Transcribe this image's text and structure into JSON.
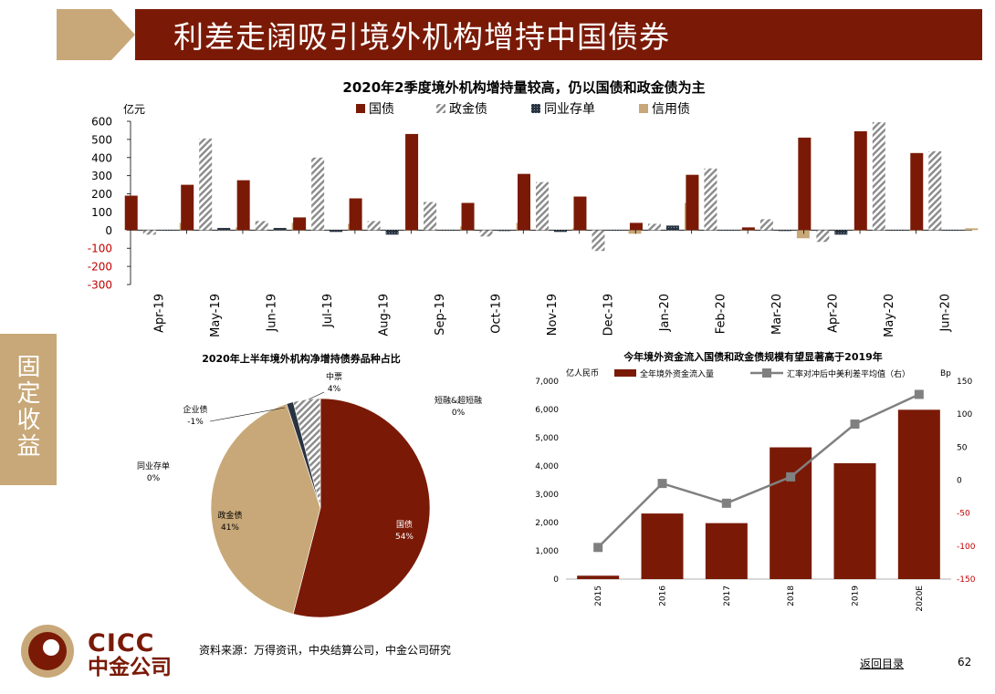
{
  "header": {
    "title": "利差走阔吸引境外机构增持中国债券"
  },
  "side_tab": {
    "label": "固定收益"
  },
  "footer": {
    "source": "资料来源：万得资讯，中央结算公司，中金公司研究",
    "back_link": "返回目录",
    "page_number": "62",
    "logo_en": "CICC",
    "logo_cn": "中金公司"
  },
  "colors": {
    "brown": "#7a1a06",
    "tan": "#c8a878",
    "navy": "#2a3340",
    "line_gray": "#808080"
  },
  "chart_data": [
    {
      "type": "bar",
      "title": "2020年2季度境外机构增持量较高，仍以国债和政金债为主",
      "ylabel": "亿元",
      "ylim": [
        -300,
        600
      ],
      "yticks": [
        "600",
        "500",
        "400",
        "300",
        "200",
        "100",
        "0",
        "-100",
        "-200",
        "-300"
      ],
      "categories": [
        "Apr-19",
        "May-19",
        "Jun-19",
        "Jul-19",
        "Aug-19",
        "Sep-19",
        "Oct-19",
        "Nov-19",
        "Dec-19",
        "Jan-20",
        "Feb-20",
        "Mar-20",
        "Apr-20",
        "May-20",
        "Jun-20"
      ],
      "legend_position": "top",
      "series": [
        {
          "name": "国债",
          "color": "#7a1a06",
          "pattern": "solid",
          "values": [
            190,
            250,
            275,
            70,
            175,
            530,
            150,
            310,
            185,
            40,
            305,
            15,
            510,
            545,
            425
          ]
        },
        {
          "name": "政金债",
          "color": "#999999",
          "pattern": "hatch",
          "values": [
            -25,
            505,
            50,
            400,
            50,
            155,
            -35,
            265,
            -115,
            35,
            340,
            60,
            -65,
            595,
            435
          ]
        },
        {
          "name": "同业存单",
          "color": "#2a3340",
          "pattern": "dots",
          "values": [
            0,
            12,
            12,
            -10,
            -25,
            0,
            -5,
            -10,
            0,
            25,
            0,
            -5,
            -25,
            0,
            0
          ]
        },
        {
          "name": "信用债",
          "color": "#c8a878",
          "pattern": "solid",
          "values": [
            40,
            15,
            40,
            35,
            0,
            20,
            40,
            10,
            -20,
            150,
            5,
            -45,
            0,
            0,
            10
          ]
        }
      ]
    },
    {
      "type": "pie",
      "title": "2020年上半年境外机构净增持债券品种占比",
      "slices": [
        {
          "name": "国债",
          "label": "54%",
          "value": 54,
          "color": "#7a1a06"
        },
        {
          "name": "政金债",
          "label": "41%",
          "value": 41,
          "color": "#c8a878"
        },
        {
          "name": "企业债",
          "label": "-1%",
          "value": 1,
          "color": "#2a3340"
        },
        {
          "name": "中票",
          "label": "4%",
          "value": 4,
          "color": "#aaaaaa"
        },
        {
          "name": "同业存单",
          "label": "0%",
          "value": 0,
          "color": "#444444"
        },
        {
          "name": "短融&超短融",
          "label": "0%",
          "value": 0,
          "color": "#666666"
        }
      ]
    },
    {
      "type": "bar",
      "title": "今年境外资金流入国债和政金债规模有望显著高于2019年",
      "ylabel": "亿人民币",
      "y2label": "Bp",
      "ylim": [
        0,
        7000
      ],
      "y2lim": [
        -150,
        150
      ],
      "yticks": [
        "7,000",
        "6,000",
        "5,000",
        "4,000",
        "3,000",
        "2,000",
        "1,000",
        "0"
      ],
      "y2ticks": [
        "150",
        "100",
        "50",
        "0",
        "-50",
        "-100",
        "-150"
      ],
      "categories": [
        "2015",
        "2016",
        "2017",
        "2018",
        "2019",
        "2020E"
      ],
      "legend_position": "top",
      "series": [
        {
          "name": "全年境外资金流入量",
          "type": "bar",
          "color": "#7a1a06",
          "values": [
            120,
            2320,
            1980,
            4660,
            4100,
            5990
          ]
        },
        {
          "name": "汇率对冲后中美利差平均值（右）",
          "type": "line",
          "color": "#808080",
          "values": [
            -102,
            -5,
            -35,
            5,
            85,
            130
          ]
        }
      ]
    }
  ]
}
